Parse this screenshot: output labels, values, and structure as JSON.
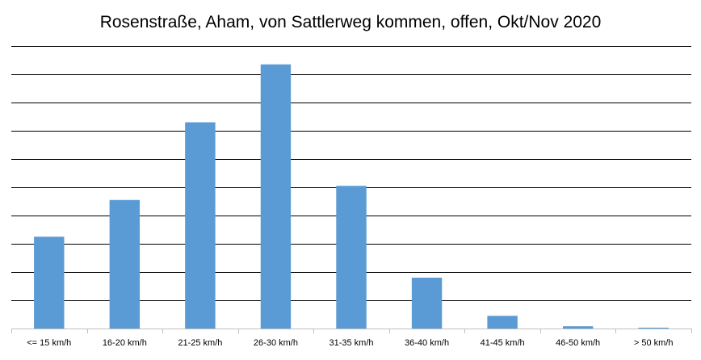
{
  "chart_data": {
    "type": "bar",
    "title": "Rosenstraße, Aham, von Sattlerweg kommen, offen, Okt/Nov 2020",
    "xlabel": "",
    "ylabel": "",
    "categories": [
      "<= 15 km/h",
      "16-20 km/h",
      "21-25 km/h",
      "26-30 km/h",
      "31-35 km/h",
      "36-40 km/h",
      "41-45 km/h",
      "46-50 km/h",
      "> 50 km/h"
    ],
    "values": [
      3.25,
      4.55,
      7.3,
      9.35,
      5.05,
      1.8,
      0.45,
      0.08,
      0.03
    ],
    "ylim": [
      0,
      10
    ],
    "y_tick_labels_shown": false,
    "grid": true,
    "bar_color": "#5b9bd5",
    "grid_color": "#000000"
  }
}
